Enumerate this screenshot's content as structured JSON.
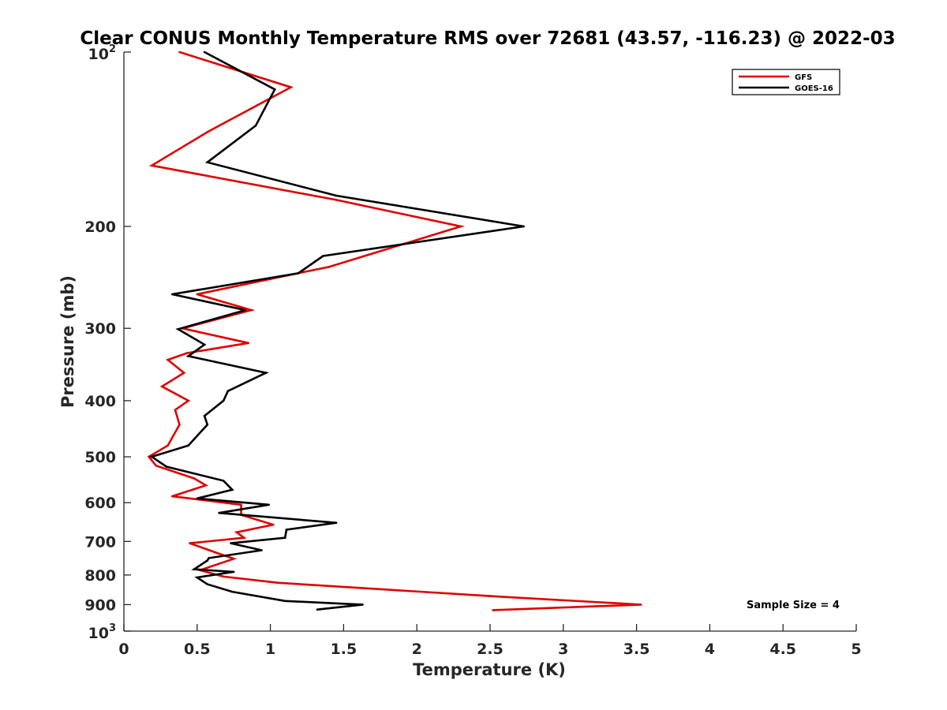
{
  "chart_data": {
    "type": "line",
    "title": "Clear CONUS Monthly Temperature RMS over 72681 (43.57, -116.23) @ 2022-03",
    "xlabel": "Temperature (K)",
    "ylabel": "Pressure (mb)",
    "xlim": [
      0,
      5
    ],
    "ylim": [
      100,
      1000
    ],
    "yscale": "log",
    "y_reversed": true,
    "x_ticks": [
      "0",
      "0.5",
      "1",
      "1.5",
      "2",
      "2.5",
      "3",
      "3.5",
      "4",
      "4.5",
      "5"
    ],
    "x_tick_values": [
      0,
      0.5,
      1,
      1.5,
      2,
      2.5,
      3,
      3.5,
      4,
      4.5,
      5
    ],
    "y_ticks_plain": [
      {
        "value": 200,
        "label": "200"
      },
      {
        "value": 300,
        "label": "300"
      },
      {
        "value": 400,
        "label": "400"
      },
      {
        "value": 500,
        "label": "500"
      },
      {
        "value": 600,
        "label": "600"
      },
      {
        "value": 700,
        "label": "700"
      },
      {
        "value": 800,
        "label": "800"
      },
      {
        "value": 900,
        "label": "900"
      }
    ],
    "y_ticks_power": [
      {
        "value": 100,
        "base": "10",
        "exp": "2"
      },
      {
        "value": 1000,
        "base": "10",
        "exp": "3"
      }
    ],
    "legend_position": "top-right",
    "grid": false,
    "annotation": "Sample Size = 4",
    "series": [
      {
        "name": "GFS",
        "color": "#e00000",
        "points": [
          [
            0.38,
            100
          ],
          [
            1.14,
            115
          ],
          [
            0.58,
            137
          ],
          [
            0.19,
            157
          ],
          [
            1.45,
            180
          ],
          [
            2.3,
            200
          ],
          [
            1.4,
            235
          ],
          [
            1.22,
            240
          ],
          [
            0.5,
            262
          ],
          [
            0.87,
            279
          ],
          [
            0.4,
            300
          ],
          [
            0.85,
            318
          ],
          [
            0.43,
            331
          ],
          [
            0.3,
            340
          ],
          [
            0.41,
            358
          ],
          [
            0.26,
            378
          ],
          [
            0.44,
            400
          ],
          [
            0.35,
            415
          ],
          [
            0.38,
            440
          ],
          [
            0.3,
            478
          ],
          [
            0.17,
            500
          ],
          [
            0.22,
            518
          ],
          [
            0.48,
            545
          ],
          [
            0.56,
            560
          ],
          [
            0.33,
            585
          ],
          [
            0.8,
            605
          ],
          [
            0.8,
            630
          ],
          [
            1.02,
            655
          ],
          [
            0.77,
            675
          ],
          [
            0.82,
            690
          ],
          [
            0.45,
            705
          ],
          [
            0.65,
            735
          ],
          [
            0.75,
            750
          ],
          [
            0.52,
            785
          ],
          [
            0.68,
            805
          ],
          [
            1.05,
            825
          ],
          [
            2.5,
            870
          ],
          [
            3.53,
            900
          ],
          [
            2.52,
            920
          ]
        ]
      },
      {
        "name": "GOES-16",
        "color": "#000000",
        "points": [
          [
            0.55,
            100
          ],
          [
            1.03,
            116
          ],
          [
            0.9,
            134
          ],
          [
            0.57,
            155
          ],
          [
            1.45,
            177
          ],
          [
            2.73,
            200
          ],
          [
            1.36,
            225
          ],
          [
            1.19,
            241
          ],
          [
            0.33,
            262
          ],
          [
            0.83,
            279
          ],
          [
            0.37,
            301
          ],
          [
            0.55,
            320
          ],
          [
            0.44,
            335
          ],
          [
            0.97,
            358
          ],
          [
            0.71,
            385
          ],
          [
            0.68,
            400
          ],
          [
            0.55,
            425
          ],
          [
            0.57,
            440
          ],
          [
            0.44,
            478
          ],
          [
            0.19,
            500
          ],
          [
            0.29,
            520
          ],
          [
            0.68,
            550
          ],
          [
            0.74,
            570
          ],
          [
            0.5,
            590
          ],
          [
            0.99,
            605
          ],
          [
            0.65,
            625
          ],
          [
            1.45,
            650
          ],
          [
            1.11,
            668
          ],
          [
            1.1,
            690
          ],
          [
            0.73,
            705
          ],
          [
            0.94,
            725
          ],
          [
            0.58,
            748
          ],
          [
            0.57,
            755
          ],
          [
            0.48,
            782
          ],
          [
            0.75,
            790
          ],
          [
            0.5,
            808
          ],
          [
            0.57,
            830
          ],
          [
            0.74,
            855
          ],
          [
            1.1,
            887
          ],
          [
            1.63,
            900
          ],
          [
            1.32,
            918
          ]
        ]
      }
    ]
  }
}
